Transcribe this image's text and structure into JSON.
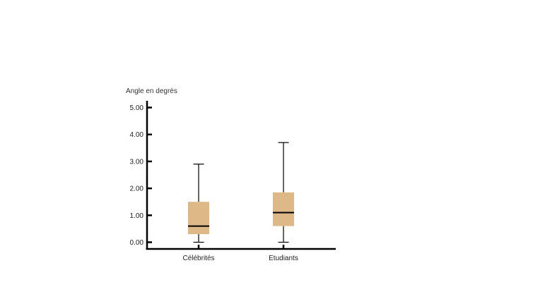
{
  "chart_data": {
    "type": "boxplot",
    "ylabel": "Angle en degrés",
    "xlabel": "",
    "ylim": [
      0,
      5
    ],
    "yticks": [
      {
        "value": 0,
        "label": "0.00"
      },
      {
        "value": 1,
        "label": "1.00"
      },
      {
        "value": 2,
        "label": "2.00"
      },
      {
        "value": 3,
        "label": "3.00"
      },
      {
        "value": 4,
        "label": "4.00"
      },
      {
        "value": 5,
        "label": "5.00"
      }
    ],
    "categories": [
      "Célébrités",
      "Etudiants"
    ],
    "boxes": [
      {
        "category": "Célébrités",
        "min": 0.0,
        "q1": 0.3,
        "median": 0.6,
        "q3": 1.5,
        "max": 2.9
      },
      {
        "category": "Etudiants",
        "min": 0.0,
        "q1": 0.6,
        "median": 1.1,
        "q3": 1.85,
        "max": 3.7
      }
    ],
    "grid": false,
    "colors": {
      "box_fill": "#deb887",
      "lines": "#000000"
    }
  }
}
